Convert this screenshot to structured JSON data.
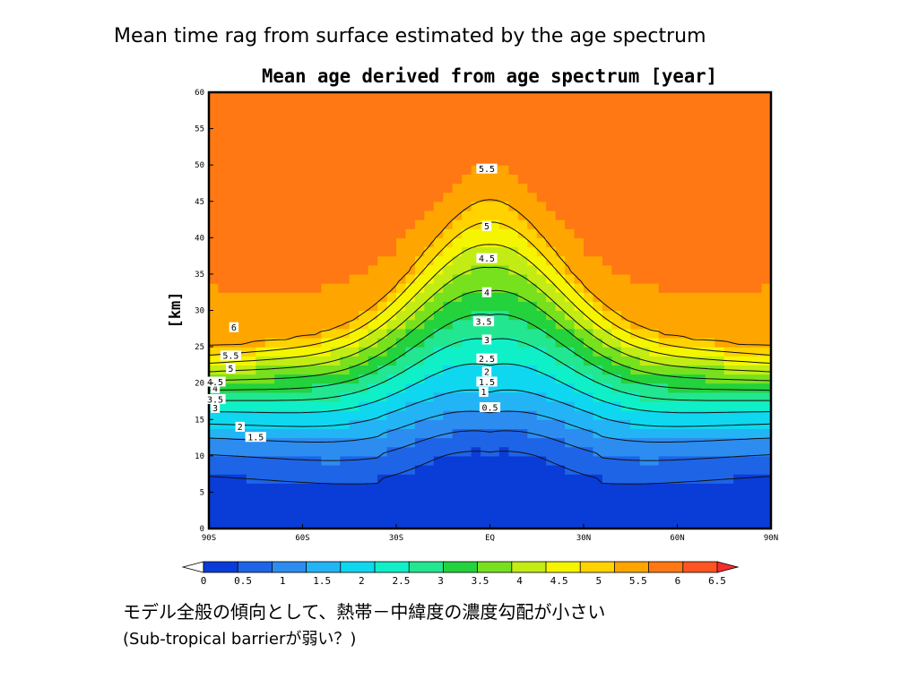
{
  "slide": {
    "heading": "Mean time rag from surface estimated by the age spectrum",
    "note_line1": "モデル全般の傾向として、熱帯－中緯度の濃度勾配が小さい",
    "note_line2": "(Sub-tropical barrierが弱い？)"
  },
  "chart_data": {
    "type": "heatmap",
    "title": "Mean age derived from age spectrum [year]",
    "xlabel": "",
    "ylabel": "[km]",
    "x_ticks": [
      "90S",
      "60S",
      "30S",
      "EQ",
      "30N",
      "60N",
      "90N"
    ],
    "x_range": [
      -90,
      90
    ],
    "y_ticks": [
      "0",
      "5",
      "10",
      "15",
      "20",
      "25",
      "30",
      "35",
      "40",
      "45",
      "50",
      "55",
      "60"
    ],
    "y_range": [
      0,
      60
    ],
    "grid": false,
    "colorbar": {
      "levels": [
        "0",
        "0.5",
        "1",
        "1.5",
        "2",
        "2.5",
        "3",
        "3.5",
        "4",
        "4.5",
        "5",
        "5.5",
        "6",
        "6.5"
      ],
      "colors": [
        "#ffffff",
        "#0a3cd8",
        "#1e64e6",
        "#2d8cf0",
        "#23b4f5",
        "#0fd7f0",
        "#0ff0c8",
        "#23e691",
        "#23d23c",
        "#78e11e",
        "#c3ec14",
        "#f5f500",
        "#ffd200",
        "#ffa500",
        "#ff7814",
        "#ff5523",
        "#f52d2d"
      ]
    },
    "contours": [
      {
        "level": "0.5",
        "label_lat": 0,
        "label_km": 16.7
      },
      {
        "level": "1",
        "label_lat": -2,
        "label_km": 18.8
      },
      {
        "level": "1.5",
        "label_lat": -75,
        "label_km": 12.6
      },
      {
        "level": "1.5",
        "label_lat": -1,
        "label_km": 20.2
      },
      {
        "level": "2",
        "label_lat": -80,
        "label_km": 14.0
      },
      {
        "level": "2",
        "label_lat": -1,
        "label_km": 21.6
      },
      {
        "level": "2.5",
        "label_lat": -1,
        "label_km": 23.4
      },
      {
        "level": "3",
        "label_lat": -88,
        "label_km": 16.6
      },
      {
        "level": "3",
        "label_lat": -1,
        "label_km": 26.0
      },
      {
        "level": "3.5",
        "label_lat": -88,
        "label_km": 17.8
      },
      {
        "level": "3.5",
        "label_lat": -2,
        "label_km": 28.5
      },
      {
        "level": "4",
        "label_lat": -88,
        "label_km": 19.3
      },
      {
        "level": "4",
        "label_lat": -1,
        "label_km": 32.5
      },
      {
        "level": "4.5",
        "label_lat": -88,
        "label_km": 20.2
      },
      {
        "level": "4.5",
        "label_lat": -1,
        "label_km": 37.2
      },
      {
        "level": "5",
        "label_lat": -83,
        "label_km": 22.0
      },
      {
        "level": "5",
        "label_lat": -1,
        "label_km": 41.6
      },
      {
        "level": "5.5",
        "label_lat": -83,
        "label_km": 23.8
      },
      {
        "level": "5.5",
        "label_lat": -1,
        "label_km": 49.5
      },
      {
        "level": "6",
        "label_lat": -82,
        "label_km": 27.7
      }
    ]
  }
}
